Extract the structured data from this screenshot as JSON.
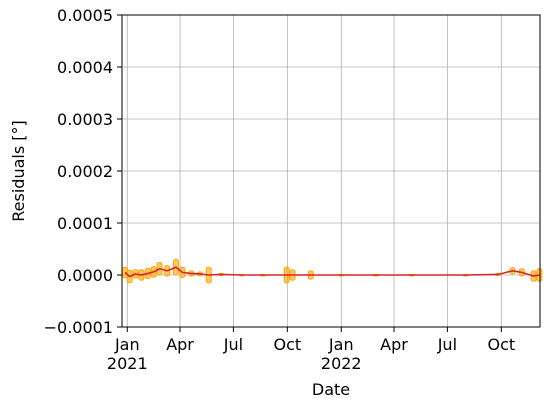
{
  "chart_data": {
    "type": "line",
    "xlabel": "Date",
    "ylabel": "Residuals [°]",
    "x": [
      "2020-12-28",
      "2021-01-05",
      "2021-01-15",
      "2021-01-25",
      "2021-02-05",
      "2021-02-15",
      "2021-02-25",
      "2021-03-10",
      "2021-03-25",
      "2021-04-05",
      "2021-04-20",
      "2021-05-05",
      "2021-05-20",
      "2021-06-10",
      "2021-07-15",
      "2021-08-20",
      "2021-09-30",
      "2021-10-10",
      "2021-11-10",
      "2022-01-01",
      "2022-03-01",
      "2022-05-01",
      "2022-08-01",
      "2022-09-25",
      "2022-10-20",
      "2022-11-05",
      "2022-11-25",
      "2022-12-05"
    ],
    "values": [
      5e-06,
      -3e-06,
      2e-06,
      0.0,
      3e-06,
      6e-06,
      1.2e-05,
      8e-06,
      1.5e-05,
      5e-06,
      3e-06,
      2e-06,
      0.0,
      1e-06,
      0.0,
      0.0,
      0.0,
      0.0,
      0.0,
      0.0,
      0.0,
      0.0,
      0.0,
      1e-06,
      8e-06,
      5e-06,
      -2e-06,
      0.0
    ],
    "errors": [
      1e-05,
      1.2e-05,
      8e-06,
      1e-05,
      1e-05,
      1e-05,
      1.2e-05,
      1e-05,
      1.5e-05,
      1e-05,
      5e-06,
      4e-06,
      1.5e-05,
      2e-06,
      1e-06,
      1e-06,
      1.5e-05,
      1e-05,
      8e-06,
      1e-06,
      1e-06,
      1e-06,
      1e-06,
      2e-06,
      6e-06,
      7e-06,
      1e-05,
      1.2e-05
    ],
    "color": "#d62728",
    "error_color": "#ffa500",
    "xlim": [
      "2020-12-23",
      "2022-12-06"
    ],
    "xticks": [
      {
        "value": "2021-01-01",
        "label": "Jan\n2021"
      },
      {
        "value": "2021-04-01",
        "label": "Apr"
      },
      {
        "value": "2021-07-01",
        "label": "Jul"
      },
      {
        "value": "2021-10-01",
        "label": "Oct"
      },
      {
        "value": "2022-01-01",
        "label": "Jan\n2022"
      },
      {
        "value": "2022-04-01",
        "label": "Apr"
      },
      {
        "value": "2022-07-01",
        "label": "Jul"
      },
      {
        "value": "2022-10-01",
        "label": "Oct"
      }
    ],
    "ylim": [
      -0.0001,
      0.0005
    ],
    "yticks": [
      {
        "value": -0.0001,
        "label": "−0.0001"
      },
      {
        "value": 0,
        "label": "0.0000"
      },
      0.0001,
      0.0002,
      0.0003,
      0.0004,
      0.0005
    ],
    "grid": true
  }
}
